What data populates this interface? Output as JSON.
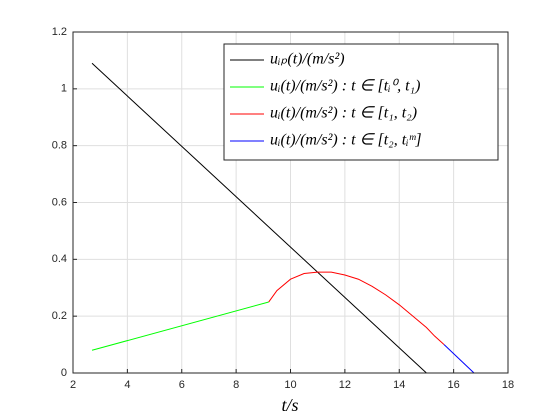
{
  "chart_data": {
    "type": "line",
    "xlabel": "t/s",
    "xlim": [
      2,
      18
    ],
    "xticks": [
      2,
      4,
      6,
      8,
      10,
      12,
      14,
      16,
      18
    ],
    "ylim": [
      0,
      1.2
    ],
    "yticks": [
      0,
      0.2,
      0.4,
      0.6,
      0.8,
      1,
      1.2
    ],
    "grid": true,
    "legend": "upper right",
    "series": [
      {
        "name": "uᵢₚ(t)/(m/s²)",
        "color": "#000000",
        "x": [
          2.7,
          15,
          16.75
        ],
        "values": [
          1.09,
          0,
          0
        ]
      },
      {
        "name": "uᵢ(t)/(m/s²) : t ∈ [tᵢ⁰, t₁)",
        "color": "#00ff00",
        "x": [
          2.7,
          9.2
        ],
        "values": [
          0.08,
          0.25
        ]
      },
      {
        "name": "uᵢ(t)/(m/s²) : t ∈ [t₁, t₂)",
        "color": "#ff0000",
        "x": [
          9.2,
          9.5,
          10,
          10.5,
          11,
          11.5,
          12,
          12.5,
          13,
          13.5,
          14,
          14.5,
          15,
          15.3,
          15.65
        ],
        "values": [
          0.25,
          0.29,
          0.33,
          0.35,
          0.355,
          0.355,
          0.345,
          0.33,
          0.305,
          0.275,
          0.24,
          0.2,
          0.16,
          0.13,
          0.1
        ]
      },
      {
        "name": "uᵢ(t)/(m/s²) : t ∈ [t₂, tᵢᵐ]",
        "color": "#0000ff",
        "x": [
          15.65,
          16.75
        ],
        "values": [
          0.1,
          0
        ]
      }
    ]
  }
}
